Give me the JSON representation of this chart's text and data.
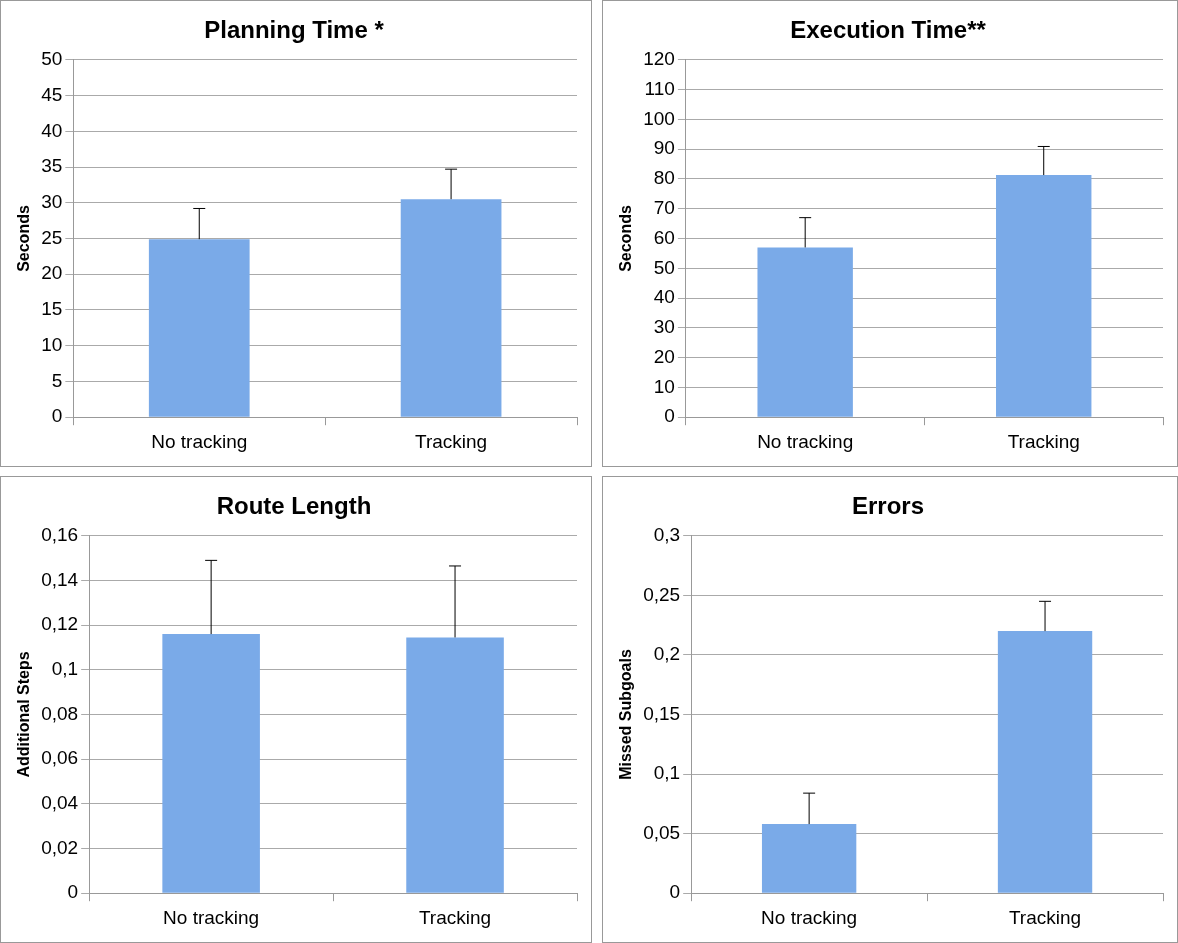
{
  "chart_data": [
    {
      "type": "bar",
      "title": "Planning Time *",
      "ylabel": "Seconds",
      "categories": [
        "No tracking",
        "Tracking"
      ],
      "values": [
        24.9,
        30.5
      ],
      "errors": [
        [
          24.9,
          29.2
        ],
        [
          30.5,
          34.7
        ]
      ],
      "color": "#7aaae8",
      "ylim": [
        0,
        50
      ],
      "yticks": [
        0,
        5,
        10,
        15,
        20,
        25,
        30,
        35,
        40,
        45,
        50
      ],
      "grid": "y",
      "legend": false
    },
    {
      "type": "bar",
      "title": "Execution Time**",
      "ylabel": "Seconds",
      "categories": [
        "No tracking",
        "Tracking"
      ],
      "values": [
        57,
        81.3
      ],
      "errors": [
        [
          57,
          67
        ],
        [
          81.3,
          90.9
        ]
      ],
      "color": "#7aaae8",
      "ylim": [
        0,
        120
      ],
      "yticks": [
        0,
        10,
        20,
        30,
        40,
        50,
        60,
        70,
        80,
        90,
        100,
        110,
        120
      ],
      "grid": "y",
      "legend": false
    },
    {
      "type": "bar",
      "title": "Route Length",
      "ylabel": "Additional Steps",
      "categories": [
        "No tracking",
        "Tracking"
      ],
      "values": [
        0.116,
        0.1145
      ],
      "errors": [
        [
          0.116,
          0.149
        ],
        [
          0.1145,
          0.1465
        ]
      ],
      "color": "#7aaae8",
      "ylim": [
        0,
        0.16
      ],
      "yticks": [
        {
          "value": 0,
          "label": "0"
        },
        {
          "value": 0.02,
          "label": "0,02"
        },
        {
          "value": 0.04,
          "label": "0,04"
        },
        {
          "value": 0.06,
          "label": "0,06"
        },
        {
          "value": 0.08,
          "label": "0,08"
        },
        {
          "value": 0.1,
          "label": "0,1"
        },
        {
          "value": 0.12,
          "label": "0,12"
        },
        {
          "value": 0.14,
          "label": "0,14"
        },
        {
          "value": 0.16,
          "label": "0,16"
        }
      ],
      "grid": "y",
      "legend": false
    },
    {
      "type": "bar",
      "title": "Errors",
      "ylabel": "Missed Subgoals",
      "categories": [
        "No tracking",
        "Tracking"
      ],
      "values": [
        0.058,
        0.22
      ],
      "errors": [
        [
          0.058,
          0.084
        ],
        [
          0.22,
          0.245
        ]
      ],
      "color": "#7aaae8",
      "ylim": [
        0,
        0.3
      ],
      "yticks": [
        {
          "value": 0,
          "label": "0"
        },
        {
          "value": 0.05,
          "label": "0,05"
        },
        {
          "value": 0.1,
          "label": "0,1"
        },
        {
          "value": 0.15,
          "label": "0,15"
        },
        {
          "value": 0.2,
          "label": "0,2"
        },
        {
          "value": 0.25,
          "label": "0,25"
        },
        {
          "value": 0.3,
          "label": "0,3"
        }
      ],
      "grid": "y",
      "legend": false
    }
  ]
}
